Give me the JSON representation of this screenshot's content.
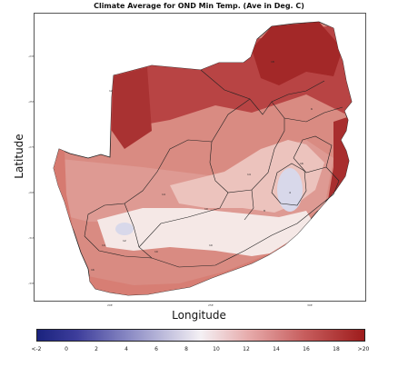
{
  "title": "Climate Average for OND Min Temp. (Ave in Deg. C)",
  "xlabel": "Longitude",
  "ylabel": "Latitude",
  "colorbar": {
    "ticks": [
      "<-2",
      "0",
      "2",
      "4",
      "6",
      "8",
      "10",
      "12",
      "14",
      "16",
      "18",
      ">20"
    ],
    "colors": [
      "#1a237e",
      "#3d3d9b",
      "#8a8ac4",
      "#f4f0f4",
      "#e6a9a9",
      "#c65c5c",
      "#9e1c1c"
    ]
  },
  "y_ticks": [
    "-23S",
    "-25S",
    "-27S",
    "-29S",
    "-31S",
    "-33S",
    "-35S"
  ],
  "x_ticks": [
    "20E",
    "25E",
    "30E"
  ],
  "region_labels": [
    "12",
    "18",
    "16",
    "14",
    "10",
    "14",
    "8",
    "4",
    "16",
    "12",
    "10",
    "14",
    "10",
    "6"
  ]
}
